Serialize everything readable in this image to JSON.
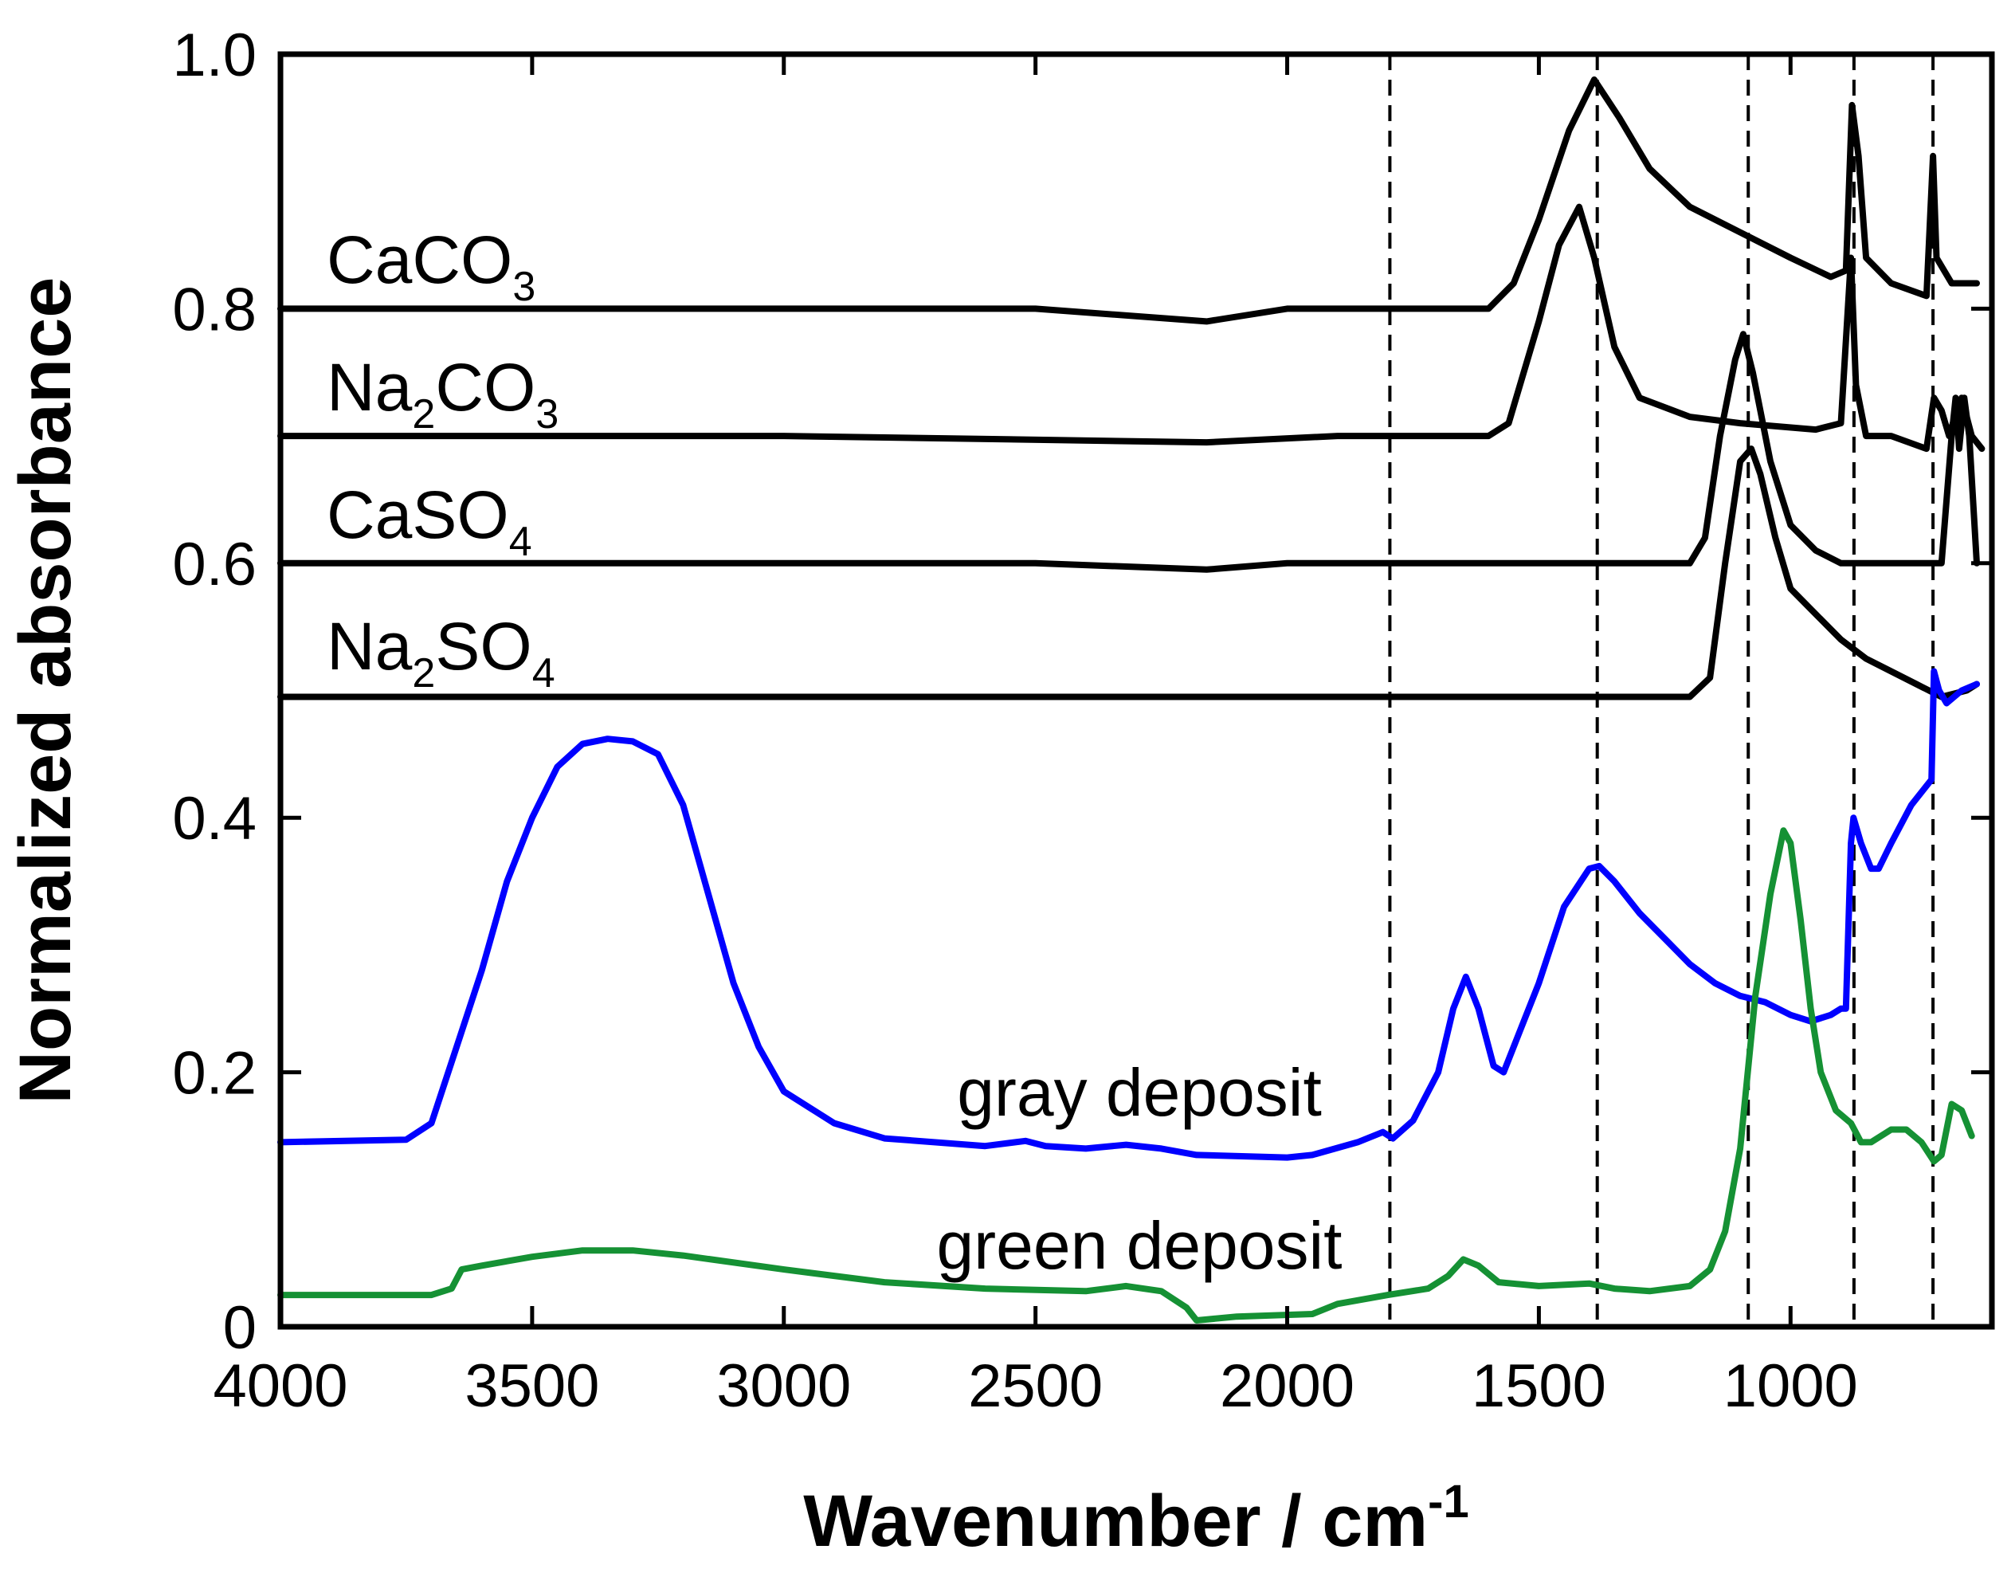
{
  "chart_data": {
    "type": "line",
    "xlabel": "Wavenumber / cm",
    "xlabel_sup": "-1",
    "ylabel": "Normalized absorbance",
    "xlim": [
      4000,
      600
    ],
    "ylim": [
      0,
      1.0
    ],
    "x_ticks": [
      4000,
      3500,
      3000,
      2500,
      2000,
      1500,
      1000
    ],
    "x_tick_labels": [
      "4000",
      "3500",
      "3000",
      "2500",
      "2000",
      "1500",
      "1000"
    ],
    "y_ticks": [
      0,
      0.2,
      0.4,
      0.6,
      0.8,
      1.0
    ],
    "y_tick_labels": [
      "0",
      "0.2",
      "0.4",
      "0.6",
      "0.8",
      "1.0"
    ],
    "reference_lines": [
      1796,
      1384,
      1084,
      874,
      717
    ],
    "series": [
      {
        "name": "CaCO3",
        "label": {
          "main": "CaCO",
          "sub": "3"
        },
        "color": "#000000",
        "points": [
          [
            4000,
            0.8
          ],
          [
            3000,
            0.8
          ],
          [
            2500,
            0.8
          ],
          [
            2160,
            0.79
          ],
          [
            2000,
            0.8
          ],
          [
            1600,
            0.8
          ],
          [
            1550,
            0.82
          ],
          [
            1500,
            0.87
          ],
          [
            1440,
            0.94
          ],
          [
            1390,
            0.98
          ],
          [
            1340,
            0.95
          ],
          [
            1280,
            0.91
          ],
          [
            1200,
            0.88
          ],
          [
            1100,
            0.86
          ],
          [
            1000,
            0.84
          ],
          [
            920,
            0.825
          ],
          [
            890,
            0.83
          ],
          [
            878,
            0.96
          ],
          [
            865,
            0.92
          ],
          [
            850,
            0.84
          ],
          [
            800,
            0.82
          ],
          [
            730,
            0.81
          ],
          [
            717,
            0.92
          ],
          [
            710,
            0.84
          ],
          [
            680,
            0.82
          ],
          [
            630,
            0.82
          ]
        ]
      },
      {
        "name": "Na2CO3",
        "label": {
          "main": "Na",
          "sub": "2",
          "main2": "CO",
          "sub2": "3"
        },
        "color": "#000000",
        "points": [
          [
            4000,
            0.7
          ],
          [
            3000,
            0.7
          ],
          [
            2160,
            0.695
          ],
          [
            1900,
            0.7
          ],
          [
            1600,
            0.7
          ],
          [
            1560,
            0.71
          ],
          [
            1500,
            0.79
          ],
          [
            1460,
            0.85
          ],
          [
            1420,
            0.88
          ],
          [
            1390,
            0.84
          ],
          [
            1350,
            0.77
          ],
          [
            1300,
            0.73
          ],
          [
            1200,
            0.715
          ],
          [
            1100,
            0.71
          ],
          [
            950,
            0.705
          ],
          [
            900,
            0.71
          ],
          [
            880,
            0.84
          ],
          [
            870,
            0.74
          ],
          [
            850,
            0.7
          ],
          [
            800,
            0.7
          ],
          [
            730,
            0.69
          ],
          [
            715,
            0.73
          ],
          [
            700,
            0.72
          ],
          [
            685,
            0.7
          ],
          [
            670,
            0.72
          ],
          [
            660,
            0.73
          ],
          [
            640,
            0.7
          ],
          [
            620,
            0.69
          ]
        ]
      },
      {
        "name": "CaSO4",
        "label": {
          "main": "CaSO",
          "sub": "4"
        },
        "color": "#000000",
        "points": [
          [
            4000,
            0.6
          ],
          [
            3000,
            0.6
          ],
          [
            2500,
            0.6
          ],
          [
            2160,
            0.595
          ],
          [
            2000,
            0.6
          ],
          [
            1500,
            0.6
          ],
          [
            1200,
            0.6
          ],
          [
            1170,
            0.62
          ],
          [
            1140,
            0.7
          ],
          [
            1110,
            0.76
          ],
          [
            1094,
            0.78
          ],
          [
            1075,
            0.75
          ],
          [
            1040,
            0.68
          ],
          [
            1000,
            0.63
          ],
          [
            950,
            0.61
          ],
          [
            900,
            0.6
          ],
          [
            700,
            0.6
          ],
          [
            680,
            0.7
          ],
          [
            672,
            0.73
          ],
          [
            665,
            0.69
          ],
          [
            655,
            0.73
          ],
          [
            645,
            0.7
          ],
          [
            630,
            0.6
          ]
        ]
      },
      {
        "name": "Na2SO4",
        "label": {
          "main": "Na",
          "sub": "2",
          "main2": "SO",
          "sub2": "4"
        },
        "color": "#000000",
        "points": [
          [
            4000,
            0.495
          ],
          [
            3000,
            0.495
          ],
          [
            2500,
            0.495
          ],
          [
            2000,
            0.495
          ],
          [
            1500,
            0.495
          ],
          [
            1200,
            0.495
          ],
          [
            1160,
            0.51
          ],
          [
            1130,
            0.6
          ],
          [
            1100,
            0.68
          ],
          [
            1078,
            0.69
          ],
          [
            1060,
            0.67
          ],
          [
            1030,
            0.62
          ],
          [
            1000,
            0.58
          ],
          [
            950,
            0.56
          ],
          [
            900,
            0.54
          ],
          [
            850,
            0.525
          ],
          [
            800,
            0.515
          ],
          [
            750,
            0.505
          ],
          [
            700,
            0.495
          ],
          [
            650,
            0.5
          ],
          [
            630,
            0.505
          ]
        ]
      },
      {
        "name": "gray deposit",
        "label": {
          "main": "gray deposit"
        },
        "color": "#0000ff",
        "points": [
          [
            4000,
            0.145
          ],
          [
            3750,
            0.147
          ],
          [
            3700,
            0.16
          ],
          [
            3650,
            0.22
          ],
          [
            3600,
            0.28
          ],
          [
            3550,
            0.35
          ],
          [
            3500,
            0.4
          ],
          [
            3450,
            0.44
          ],
          [
            3400,
            0.458
          ],
          [
            3350,
            0.462
          ],
          [
            3300,
            0.46
          ],
          [
            3250,
            0.45
          ],
          [
            3200,
            0.41
          ],
          [
            3150,
            0.34
          ],
          [
            3100,
            0.27
          ],
          [
            3050,
            0.22
          ],
          [
            3000,
            0.185
          ],
          [
            2900,
            0.16
          ],
          [
            2800,
            0.148
          ],
          [
            2600,
            0.142
          ],
          [
            2520,
            0.146
          ],
          [
            2480,
            0.142
          ],
          [
            2400,
            0.14
          ],
          [
            2320,
            0.143
          ],
          [
            2250,
            0.14
          ],
          [
            2180,
            0.135
          ],
          [
            2000,
            0.133
          ],
          [
            1950,
            0.135
          ],
          [
            1860,
            0.145
          ],
          [
            1810,
            0.153
          ],
          [
            1790,
            0.148
          ],
          [
            1750,
            0.162
          ],
          [
            1700,
            0.2
          ],
          [
            1670,
            0.25
          ],
          [
            1645,
            0.275
          ],
          [
            1620,
            0.25
          ],
          [
            1590,
            0.205
          ],
          [
            1570,
            0.2
          ],
          [
            1540,
            0.23
          ],
          [
            1500,
            0.27
          ],
          [
            1450,
            0.33
          ],
          [
            1400,
            0.36
          ],
          [
            1380,
            0.362
          ],
          [
            1350,
            0.35
          ],
          [
            1300,
            0.325
          ],
          [
            1250,
            0.305
          ],
          [
            1200,
            0.285
          ],
          [
            1150,
            0.27
          ],
          [
            1100,
            0.26
          ],
          [
            1050,
            0.255
          ],
          [
            1000,
            0.245
          ],
          [
            960,
            0.24
          ],
          [
            920,
            0.245
          ],
          [
            900,
            0.25
          ],
          [
            890,
            0.25
          ],
          [
            880,
            0.38
          ],
          [
            875,
            0.4
          ],
          [
            860,
            0.38
          ],
          [
            840,
            0.36
          ],
          [
            825,
            0.36
          ],
          [
            800,
            0.38
          ],
          [
            760,
            0.41
          ],
          [
            730,
            0.425
          ],
          [
            720,
            0.43
          ],
          [
            715,
            0.515
          ],
          [
            705,
            0.5
          ],
          [
            690,
            0.49
          ],
          [
            660,
            0.5
          ],
          [
            630,
            0.505
          ]
        ]
      },
      {
        "name": "green deposit",
        "label": {
          "main": "green deposit"
        },
        "color": "#159134",
        "points": [
          [
            4000,
            0.025
          ],
          [
            3700,
            0.025
          ],
          [
            3660,
            0.03
          ],
          [
            3640,
            0.045
          ],
          [
            3600,
            0.048
          ],
          [
            3500,
            0.055
          ],
          [
            3400,
            0.06
          ],
          [
            3300,
            0.06
          ],
          [
            3200,
            0.056
          ],
          [
            3000,
            0.045
          ],
          [
            2800,
            0.035
          ],
          [
            2600,
            0.03
          ],
          [
            2400,
            0.028
          ],
          [
            2320,
            0.032
          ],
          [
            2250,
            0.028
          ],
          [
            2200,
            0.015
          ],
          [
            2180,
            0.005
          ],
          [
            2100,
            0.008
          ],
          [
            1950,
            0.01
          ],
          [
            1900,
            0.018
          ],
          [
            1800,
            0.025
          ],
          [
            1720,
            0.03
          ],
          [
            1680,
            0.04
          ],
          [
            1650,
            0.053
          ],
          [
            1620,
            0.048
          ],
          [
            1580,
            0.035
          ],
          [
            1500,
            0.032
          ],
          [
            1400,
            0.034
          ],
          [
            1350,
            0.03
          ],
          [
            1280,
            0.028
          ],
          [
            1200,
            0.032
          ],
          [
            1160,
            0.045
          ],
          [
            1130,
            0.075
          ],
          [
            1100,
            0.14
          ],
          [
            1070,
            0.26
          ],
          [
            1040,
            0.34
          ],
          [
            1014,
            0.39
          ],
          [
            1000,
            0.38
          ],
          [
            980,
            0.32
          ],
          [
            960,
            0.25
          ],
          [
            940,
            0.2
          ],
          [
            910,
            0.17
          ],
          [
            880,
            0.16
          ],
          [
            860,
            0.145
          ],
          [
            840,
            0.145
          ],
          [
            800,
            0.155
          ],
          [
            770,
            0.155
          ],
          [
            740,
            0.145
          ],
          [
            715,
            0.13
          ],
          [
            700,
            0.135
          ],
          [
            680,
            0.175
          ],
          [
            660,
            0.17
          ],
          [
            640,
            0.15
          ]
        ]
      }
    ]
  }
}
